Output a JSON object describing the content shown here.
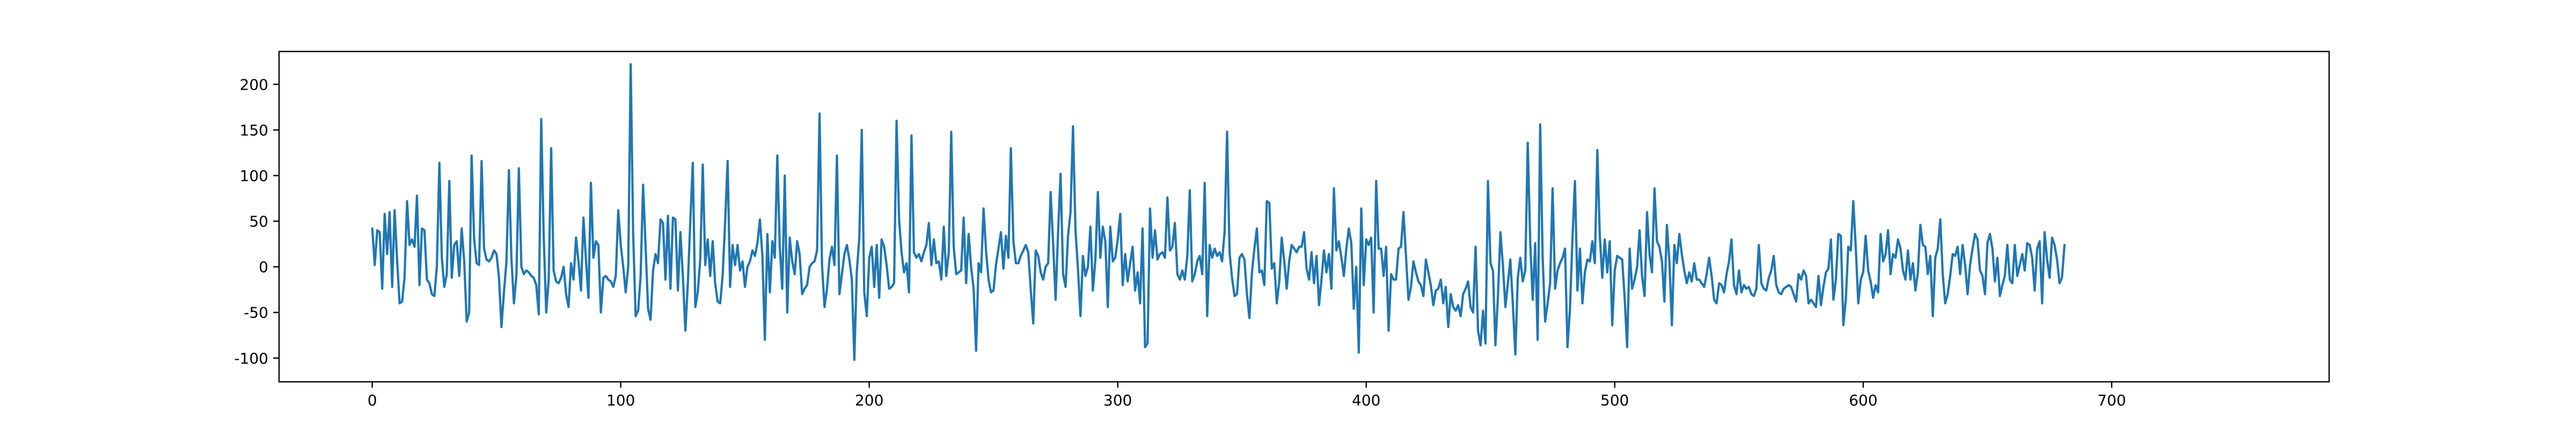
{
  "chart_data": {
    "type": "line",
    "title": "",
    "xlabel": "",
    "ylabel": "",
    "xlim": [
      -37.5,
      787.5
    ],
    "ylim": [
      -126,
      236
    ],
    "x_ticks": [
      0,
      100,
      200,
      300,
      400,
      500,
      600,
      700
    ],
    "y_ticks": [
      -100,
      -50,
      0,
      50,
      100,
      150,
      200
    ],
    "grid": false,
    "legend": "none",
    "series_color": "#1f77b4",
    "series": [
      {
        "x_start": 0,
        "x_step": 1,
        "values": [
          42,
          2,
          40,
          38,
          -24,
          58,
          14,
          60,
          -22,
          62,
          8,
          -40,
          -38,
          -12,
          72,
          24,
          30,
          22,
          78,
          -20,
          42,
          40,
          -14,
          -18,
          -30,
          -32,
          0,
          114,
          10,
          -22,
          -8,
          94,
          -12,
          24,
          28,
          -10,
          42,
          6,
          -60,
          -50,
          122,
          30,
          4,
          2,
          116,
          20,
          8,
          6,
          10,
          18,
          14,
          -12,
          -66,
          -28,
          6,
          106,
          10,
          -40,
          -10,
          108,
          0,
          -8,
          -4,
          -6,
          -10,
          -12,
          -20,
          -52,
          162,
          34,
          -50,
          -14,
          130,
          -4,
          -16,
          -18,
          -12,
          0,
          -30,
          -44,
          4,
          -14,
          32,
          6,
          -26,
          54,
          8,
          -34,
          92,
          10,
          28,
          24,
          -50,
          -12,
          -10,
          -14,
          -16,
          -22,
          -10,
          62,
          24,
          0,
          -28,
          0,
          222,
          36,
          -54,
          -48,
          -10,
          90,
          22,
          -46,
          -58,
          -4,
          14,
          4,
          52,
          48,
          -14,
          56,
          -24,
          54,
          52,
          -26,
          38,
          -10,
          -70,
          -18,
          50,
          114,
          -44,
          -28,
          8,
          112,
          2,
          30,
          -10,
          28,
          -18,
          -38,
          -40,
          -10,
          48,
          116,
          -22,
          24,
          2,
          24,
          -4,
          6,
          -22,
          0,
          6,
          18,
          12,
          26,
          52,
          12,
          -80,
          36,
          -28,
          28,
          10,
          122,
          22,
          -24,
          100,
          -50,
          32,
          6,
          -8,
          28,
          14,
          -30,
          -24,
          -20,
          0,
          4,
          6,
          18,
          168,
          2,
          -44,
          -24,
          8,
          22,
          2,
          122,
          -30,
          -8,
          14,
          24,
          8,
          -14,
          -102,
          -6,
          32,
          150,
          -28,
          -54,
          10,
          22,
          -22,
          24,
          -34,
          30,
          22,
          2,
          -24,
          -22,
          -18,
          160,
          52,
          16,
          -6,
          4,
          -28,
          144,
          16,
          10,
          14,
          6,
          16,
          24,
          48,
          2,
          30,
          4,
          6,
          -14,
          44,
          -10,
          16,
          148,
          22,
          -8,
          -6,
          -4,
          54,
          -18,
          36,
          0,
          -24,
          -92,
          4,
          -6,
          64,
          18,
          -14,
          -28,
          -26,
          2,
          20,
          38,
          -2,
          34,
          10,
          130,
          28,
          4,
          4,
          12,
          18,
          24,
          16,
          -26,
          -62,
          18,
          12,
          -6,
          -14,
          0,
          4,
          82,
          26,
          -36,
          38,
          102,
          -8,
          -22,
          34,
          60,
          154,
          40,
          -2,
          -54,
          12,
          -10,
          0,
          44,
          -26,
          8,
          82,
          10,
          44,
          28,
          -44,
          44,
          6,
          10,
          30,
          58,
          -20,
          14,
          -16,
          4,
          22,
          -26,
          -6,
          -40,
          42,
          -88,
          -84,
          64,
          10,
          40,
          8,
          14,
          16,
          10,
          76,
          18,
          22,
          48,
          -8,
          -14,
          -4,
          -14,
          12,
          84,
          -16,
          -8,
          6,
          12,
          -8,
          92,
          -54,
          24,
          10,
          20,
          12,
          16,
          6,
          38,
          148,
          16,
          -12,
          -32,
          -30,
          10,
          14,
          8,
          -30,
          -56,
          -6,
          20,
          42,
          -6,
          -4,
          -20,
          72,
          70,
          -2,
          4,
          -40,
          -16,
          32,
          6,
          -24,
          6,
          24,
          20,
          16,
          22,
          22,
          38,
          -2,
          -14,
          16,
          -18,
          12,
          -42,
          -14,
          18,
          -6,
          14,
          -24,
          86,
          18,
          28,
          10,
          -10,
          20,
          42,
          26,
          -46,
          0,
          -94,
          64,
          -20,
          30,
          24,
          32,
          -50,
          94,
          20,
          20,
          -10,
          22,
          -70,
          -8,
          -14,
          -14,
          20,
          22,
          60,
          12,
          -36,
          -22,
          6,
          -6,
          -16,
          -20,
          -32,
          8,
          -6,
          -20,
          -42,
          -26,
          -24,
          -14,
          -40,
          -22,
          -66,
          -30,
          -44,
          -48,
          -42,
          -54,
          -30,
          -24,
          -16,
          -44,
          -50,
          22,
          -70,
          -86,
          -48,
          -84,
          94,
          4,
          -4,
          -86,
          -32,
          38,
          2,
          -44,
          -18,
          8,
          -40,
          -96,
          -12,
          10,
          -16,
          -4,
          136,
          26,
          -36,
          26,
          -80,
          156,
          10,
          -60,
          -40,
          -18,
          86,
          -24,
          -4,
          4,
          10,
          20,
          -88,
          -46,
          32,
          94,
          -26,
          20,
          -40,
          -6,
          8,
          6,
          28,
          4,
          128,
          34,
          -12,
          30,
          -6,
          28,
          -64,
          -4,
          12,
          10,
          8,
          -34,
          -88,
          20,
          -24,
          -14,
          0,
          40,
          -10,
          -32,
          60,
          14,
          -6,
          86,
          28,
          22,
          6,
          -38,
          46,
          6,
          -64,
          24,
          4,
          36,
          14,
          -4,
          -18,
          -6,
          -16,
          4,
          -14,
          -14,
          -18,
          -22,
          -8,
          10,
          -10,
          -36,
          -40,
          -18,
          -20,
          -28,
          -8,
          6,
          30,
          -20,
          -30,
          -4,
          -28,
          -20,
          -24,
          -22,
          -30,
          -32,
          -24,
          24,
          -18,
          -24,
          -26,
          -12,
          -4,
          12,
          -20,
          -28,
          -30,
          -24,
          -22,
          -20,
          -22,
          -30,
          -38,
          -8,
          -14,
          -4,
          -10,
          -40,
          -36,
          -40,
          -44,
          -10,
          -42,
          -22,
          -6,
          -2,
          30,
          -36,
          -14,
          36,
          34,
          -64,
          -36,
          22,
          18,
          72,
          22,
          -40,
          -14,
          -6,
          34,
          -4,
          -16,
          -34,
          -20,
          -28,
          36,
          6,
          14,
          40,
          -8,
          14,
          10,
          30,
          20,
          -4,
          -14,
          18,
          -14,
          4,
          -26,
          -6,
          46,
          24,
          22,
          -8,
          12,
          -54,
          10,
          20,
          52,
          -8,
          -40,
          -30,
          -10,
          14,
          12,
          22,
          -8,
          24,
          2,
          -30,
          2,
          20,
          36,
          30,
          -4,
          -10,
          -30,
          26,
          36,
          20,
          -16,
          10,
          -32,
          -20,
          -10,
          24,
          -14,
          -18,
          24,
          -10,
          2,
          14,
          -4,
          26,
          24,
          10,
          -26,
          20,
          28,
          -40,
          38,
          8,
          -12,
          32,
          24,
          8,
          -18,
          -12,
          24
        ]
      }
    ]
  }
}
